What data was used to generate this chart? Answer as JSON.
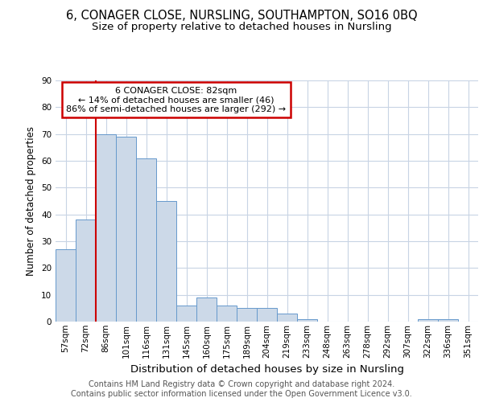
{
  "title1": "6, CONAGER CLOSE, NURSLING, SOUTHAMPTON, SO16 0BQ",
  "title2": "Size of property relative to detached houses in Nursling",
  "xlabel": "Distribution of detached houses by size in Nursling",
  "ylabel": "Number of detached properties",
  "categories": [
    "57sqm",
    "72sqm",
    "86sqm",
    "101sqm",
    "116sqm",
    "131sqm",
    "145sqm",
    "160sqm",
    "175sqm",
    "189sqm",
    "204sqm",
    "219sqm",
    "233sqm",
    "248sqm",
    "263sqm",
    "278sqm",
    "292sqm",
    "307sqm",
    "322sqm",
    "336sqm",
    "351sqm"
  ],
  "values": [
    27,
    38,
    70,
    69,
    61,
    45,
    6,
    9,
    6,
    5,
    5,
    3,
    1,
    0,
    0,
    0,
    0,
    0,
    1,
    1,
    0
  ],
  "bar_color": "#ccd9e8",
  "bar_edge_color": "#6699cc",
  "highlight_line_index": 2,
  "highlight_line_color": "#cc0000",
  "annotation_text": "6 CONAGER CLOSE: 82sqm\n← 14% of detached houses are smaller (46)\n86% of semi-detached houses are larger (292) →",
  "annotation_box_color": "#ffffff",
  "annotation_border_color": "#cc0000",
  "ylim": [
    0,
    90
  ],
  "yticks": [
    0,
    10,
    20,
    30,
    40,
    50,
    60,
    70,
    80,
    90
  ],
  "footer": "Contains HM Land Registry data © Crown copyright and database right 2024.\nContains public sector information licensed under the Open Government Licence v3.0.",
  "background_color": "#ffffff",
  "grid_color": "#c8d4e4",
  "title1_fontsize": 10.5,
  "title2_fontsize": 9.5,
  "xlabel_fontsize": 9.5,
  "ylabel_fontsize": 8.5,
  "tick_fontsize": 7.5,
  "footer_fontsize": 7,
  "annotation_fontsize": 8
}
